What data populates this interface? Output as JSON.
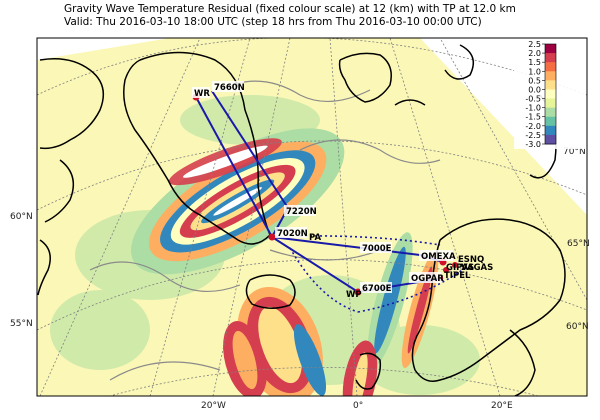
{
  "title_line1": "Gravity Wave Temperature Residual (fixed colour scale) at 12 (km) with TP at 12.0 km",
  "title_line2": "Valid: Thu 2016-03-10 18:00 UTC (step 18 hrs from Thu 2016-03-10 00:00 UTC)",
  "lat_labels": [
    "70°N",
    "65°N",
    "60°N",
    "60°N",
    "55°N"
  ],
  "lon_labels": [
    "20°W",
    "0°",
    "20°E"
  ],
  "colorbar": {
    "ticks": [
      "2.5",
      "2.0",
      "1.5",
      "1.0",
      "0.5",
      "0.0",
      "-0.5",
      "-1.0",
      "-1.5",
      "-2.0",
      "-2.5",
      "-3.0"
    ],
    "colors": [
      "#9e0142",
      "#d53e4f",
      "#f46d43",
      "#fdae61",
      "#fee08b",
      "#ffffbf",
      "#e6f598",
      "#abdda4",
      "#66c2a5",
      "#3288bd",
      "#5e4fa2"
    ]
  },
  "waypoints": [
    "WR",
    "7660N",
    "7220N",
    "7020N",
    "PA",
    "7000E",
    "OMEXA",
    "ESNQ",
    "GIPAS",
    "VAGAS",
    "TIPEL",
    "OGPAR",
    "6700E",
    "WP"
  ],
  "colors": {
    "route": "#1a1aaa",
    "coast": "#000000",
    "grid": "#808080"
  }
}
